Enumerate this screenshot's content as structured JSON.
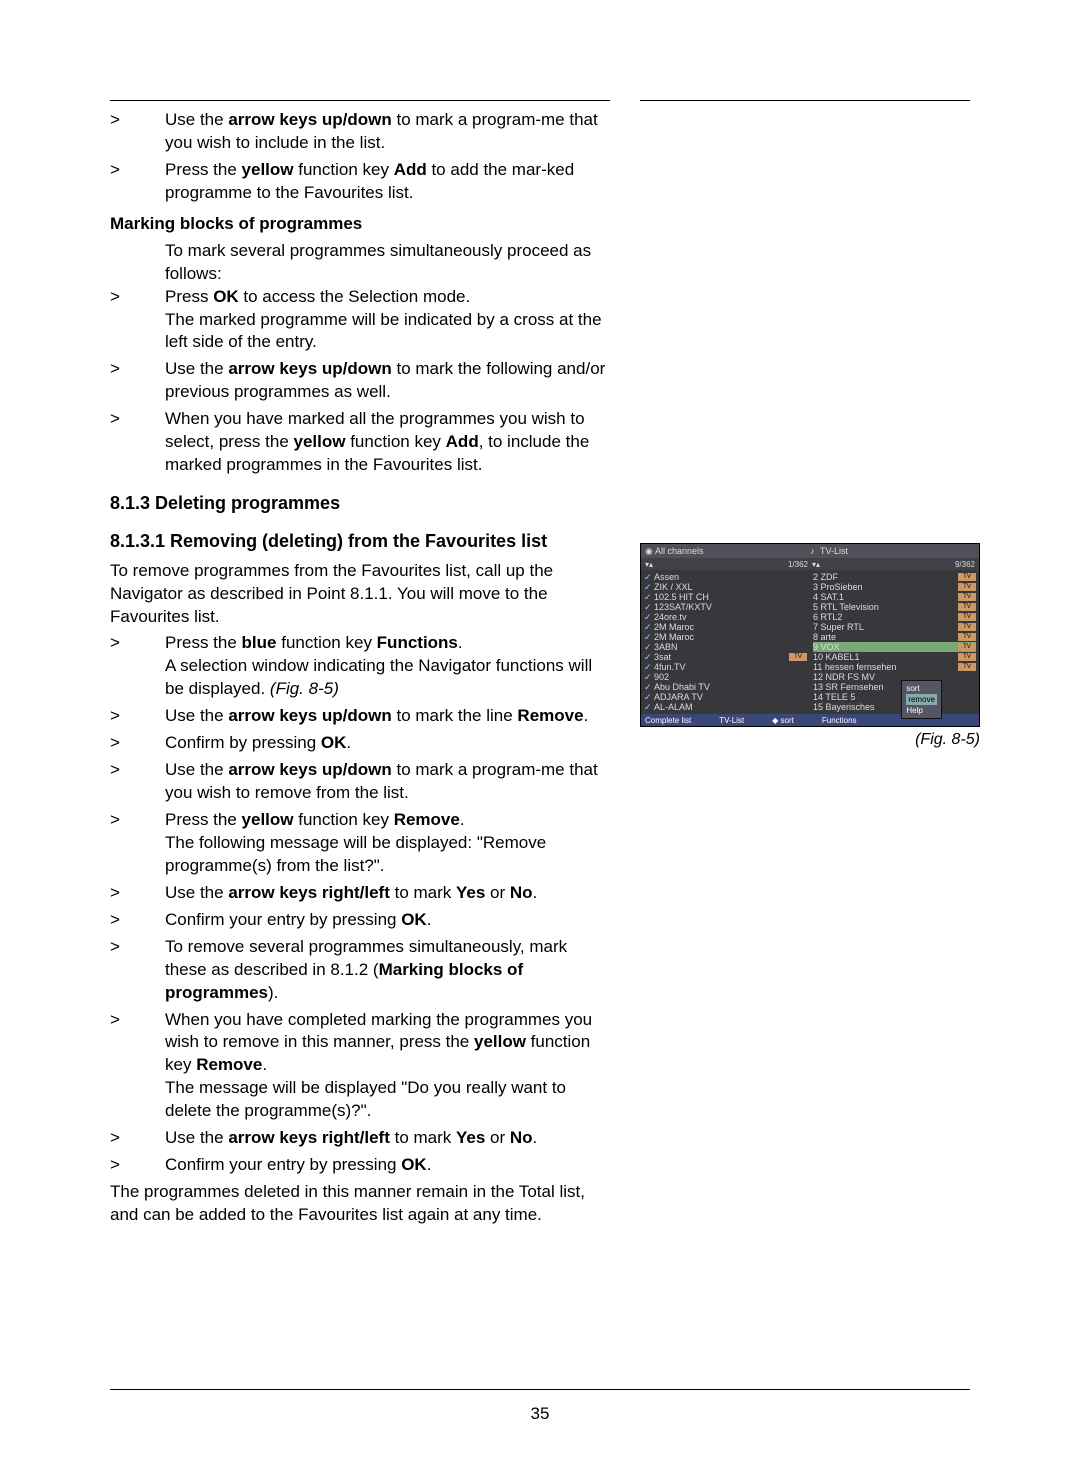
{
  "pageNumber": "35",
  "intro": {
    "step1_a": "Use the ",
    "step1_b": "arrow keys up/down",
    "step1_c": " to mark a program-me that you wish to include in the list.",
    "step2_a": "Press the ",
    "step2_b": "yellow",
    "step2_c": " function key ",
    "step2_d": "Add",
    "step2_e": " to add the mar-ked programme to the Favourites list."
  },
  "marking": {
    "heading": "Marking blocks of programmes",
    "intro": "To mark several programmes simultaneously proceed as follows:",
    "s1_a": "Press ",
    "s1_b": "OK",
    "s1_c": " to access the Selection mode.",
    "s1_d": "The marked programme will be indicated by a cross at the left side of the entry.",
    "s2_a": "Use the ",
    "s2_b": "arrow keys up/down",
    "s2_c": " to mark the following and/or previous programmes as well.",
    "s3_a": "When you have marked all the programmes you wish to select, press the ",
    "s3_b": "yellow",
    "s3_c": " function key ",
    "s3_d": "Add",
    "s3_e": ", to include the marked programmes in the Favourites list."
  },
  "del": {
    "heading": "8.1.3 Deleting programmes"
  },
  "remfav": {
    "heading": "8.1.3.1 Removing (deleting) from the Favourites list",
    "intro": "To remove programmes from the Favourites list, call up the Navigator as described in Point 8.1.1. You will move to the Favourites list.",
    "s1_a": "Press the ",
    "s1_b": "blue",
    "s1_c": " function key ",
    "s1_d": "Functions",
    "s1_e": ".",
    "s1_f": "A selection window indicating the Navigator functions will be displayed. ",
    "s1_g": "(Fig. 8-5)",
    "s2_a": "Use the ",
    "s2_b": "arrow keys up/down",
    "s2_c": " to mark the line ",
    "s2_d": "Remove",
    "s2_e": ".",
    "s3_a": "Confirm by pressing ",
    "s3_b": "OK",
    "s3_c": ".",
    "s4_a": "Use the ",
    "s4_b": "arrow keys up/down",
    "s4_c": " to mark a program-me that you wish to remove from the list.",
    "s5_a": "Press the ",
    "s5_b": "yellow",
    "s5_c": " function key ",
    "s5_d": "Remove",
    "s5_e": ".",
    "s5_f": "The following message will be displayed: \"Remove programme(s) from the list?\".",
    "s6_a": "Use the ",
    "s6_b": "arrow keys right/left",
    "s6_c": " to mark ",
    "s6_d": "Yes",
    "s6_e": " or ",
    "s6_f": "No",
    "s6_g": ".",
    "s7_a": "Confirm your entry by pressing ",
    "s7_b": "OK",
    "s7_c": ".",
    "s8_a": "To remove several programmes simultaneously, mark these as described in 8.1.2 (",
    "s8_b": "Marking blocks of programmes",
    "s8_c": ").",
    "s9_a": "When you have completed marking the programmes you wish to remove in this manner, press the ",
    "s9_b": "yellow",
    "s9_c": " function key ",
    "s9_d": "Remove",
    "s9_e": ".",
    "s9_f": "The message will be displayed \"Do you really want to delete the programme(s)?\".",
    "s10_a": "Use the ",
    "s10_b": "arrow keys right/left",
    "s10_c": " to mark ",
    "s10_d": "Yes",
    "s10_e": " or ",
    "s10_f": "No",
    "s10_g": ".",
    "s11_a": "Confirm your entry by pressing ",
    "s11_b": "OK",
    "s11_c": ".",
    "footer": "The programmes deleted in this manner remain in the Total list, and can be added to the Favourites list again at any time."
  },
  "figure": {
    "header_left": "All channels",
    "header_right": "TV-List",
    "count_left": "1/362",
    "count_right": "9/362",
    "left_list": [
      "Assen",
      "ZIK / XXL",
      "102.5 HIT CH",
      "123SAT/KXTV",
      "24ore.tv",
      "2M Maroc",
      "2M Maroc",
      "3ABN",
      "3sat",
      "4fun.TV",
      "902",
      "Abu Dhabi TV",
      "ADJARA TV",
      "AL-ALAM"
    ],
    "right_list": [
      "2 ZDF",
      "3 ProSieben",
      "4 SAT.1",
      "5 RTL Television",
      "6 RTL2",
      "7 Super RTL",
      "8 arte",
      "9 VOX",
      "10 KABEL1",
      "11 hessen fernsehen",
      "12 NDR FS MV",
      "13 SR Fernsehen",
      "14 TELE 5",
      "15 Bayerisches"
    ],
    "popup": [
      "sort",
      "remove",
      "Help"
    ],
    "footer": [
      "Complete list",
      "TV-List",
      "sort",
      "Functions"
    ],
    "caption": "(Fig. 8-5)"
  }
}
